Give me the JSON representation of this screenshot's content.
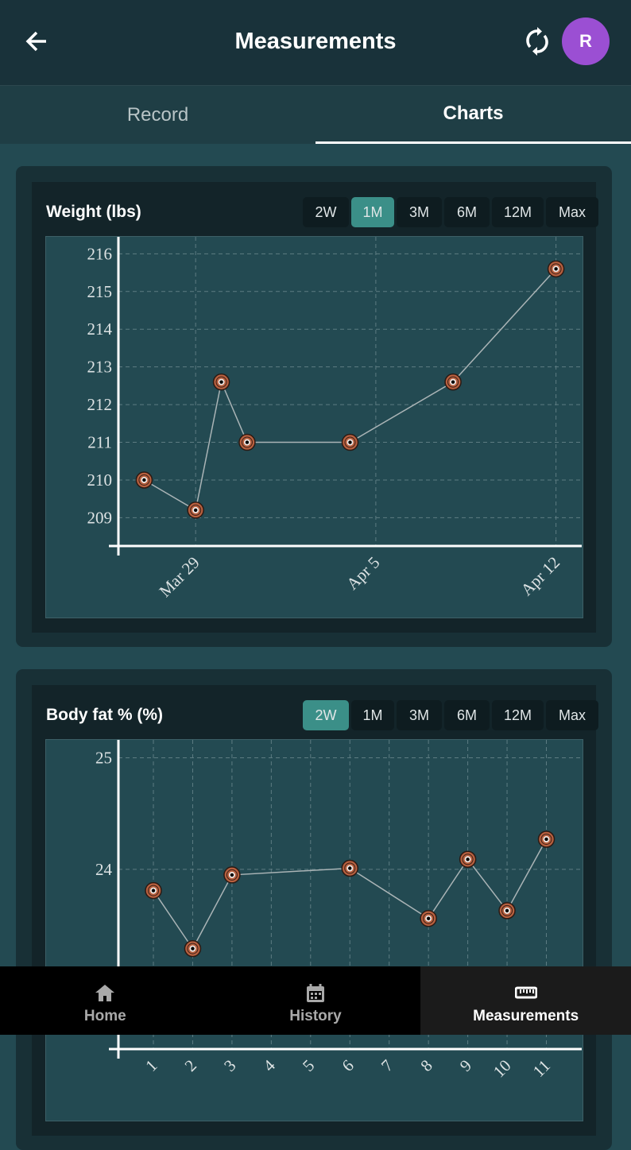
{
  "header": {
    "title": "Measurements",
    "avatar": "R"
  },
  "tabs": [
    "Record",
    "Charts"
  ],
  "active_tab": 1,
  "chart_data": [
    {
      "type": "line",
      "title": "Weight (lbs)",
      "ranges": [
        "2W",
        "1M",
        "3M",
        "6M",
        "12M",
        "Max"
      ],
      "selected_range": 1,
      "x": [
        "Mar 27",
        "Mar 29",
        "Mar 30",
        "Mar 31",
        "Apr 4",
        "Apr 8",
        "Apr 12"
      ],
      "values": [
        210.0,
        209.2,
        212.6,
        211.0,
        211.0,
        212.6,
        215.6
      ],
      "color": "#b8603f",
      "line_color": "#aab4b6",
      "xlim": [
        "Mar 26",
        "Apr 13"
      ],
      "xticks": [
        "Mar 29",
        "Apr 5",
        "Apr 12"
      ],
      "ylim": [
        208.25,
        216.45
      ],
      "yticks": [
        209,
        210,
        211,
        212,
        213,
        214,
        215,
        216
      ],
      "grid": true
    },
    {
      "type": "line",
      "title": "Body fat % (%)",
      "ranges": [
        "2W",
        "1M",
        "3M",
        "6M",
        "12M",
        "Max"
      ],
      "selected_range": 0,
      "x": [
        1,
        2,
        3,
        6,
        8,
        9,
        10,
        11
      ],
      "values": [
        23.81,
        23.29,
        23.95,
        24.01,
        23.56,
        24.09,
        23.63,
        24.27
      ],
      "color": "#b8603f",
      "line_color": "#aab4b6",
      "xlim": [
        0.11,
        11.9
      ],
      "xticks": [
        1,
        2,
        3,
        4,
        5,
        6,
        7,
        8,
        9,
        10,
        11
      ],
      "ylim": [
        22.39,
        25.16
      ],
      "yticks": [
        24,
        25
      ],
      "grid": true
    }
  ],
  "nav": [
    "Home",
    "History",
    "Measurements"
  ],
  "active_nav": 2
}
